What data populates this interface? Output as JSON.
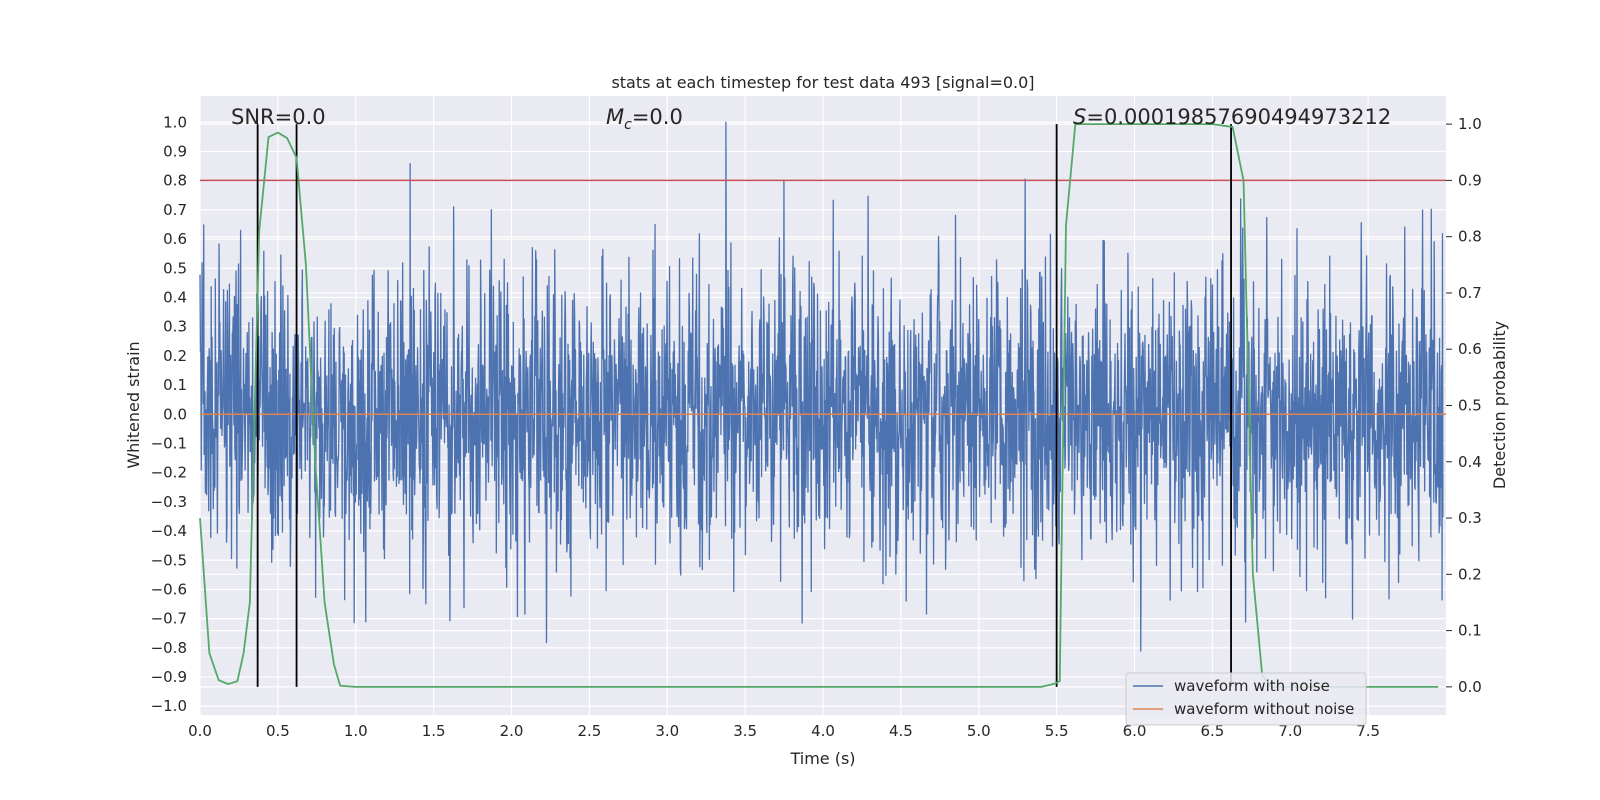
{
  "chart_data": {
    "type": "line",
    "title": "stats at each timestep for test data 493 [signal=0.0]",
    "xlabel": "Time (s)",
    "ylabel": "Whitened strain",
    "ylabel_right": "Detection probability",
    "xlim": [
      0.0,
      8.0
    ],
    "ylim": [
      -1.03,
      1.09
    ],
    "ylim_right": [
      -0.05,
      1.05
    ],
    "xticks": [
      "0.0",
      "0.5",
      "1.0",
      "1.5",
      "2.0",
      "2.5",
      "3.0",
      "3.5",
      "4.0",
      "4.5",
      "5.0",
      "5.5",
      "6.0",
      "6.5",
      "7.0",
      "7.5"
    ],
    "xtick_values": [
      0,
      0.5,
      1,
      1.5,
      2,
      2.5,
      3,
      3.5,
      4,
      4.5,
      5,
      5.5,
      6,
      6.5,
      7,
      7.5
    ],
    "yticks_left": [
      "1.0",
      "0.9",
      "0.8",
      "0.7",
      "0.6",
      "0.5",
      "0.4",
      "0.3",
      "0.2",
      "0.1",
      "0.0",
      "−0.1",
      "−0.2",
      "−0.3",
      "−0.4",
      "−0.5",
      "−0.6",
      "−0.7",
      "−0.8",
      "−0.9",
      "−1.0"
    ],
    "ytick_left_values": [
      1.0,
      0.9,
      0.8,
      0.7,
      0.6,
      0.5,
      0.4,
      0.3,
      0.2,
      0.1,
      0.0,
      -0.1,
      -0.2,
      -0.3,
      -0.4,
      -0.5,
      -0.6,
      -0.7,
      -0.8,
      -0.9,
      -1.0
    ],
    "yticks_right": [
      "1.0",
      "0.9",
      "0.8",
      "0.7",
      "0.6",
      "0.5",
      "0.4",
      "0.3",
      "0.2",
      "0.1",
      "0.0"
    ],
    "ytick_right_values": [
      1.0,
      0.9,
      0.8,
      0.7,
      0.6,
      0.5,
      0.4,
      0.3,
      0.2,
      0.1,
      0.0
    ],
    "annotations": {
      "snr": "SNR=0.0",
      "mc_symbol": "M",
      "mc_sub": "c",
      "mc_value": "=0.0",
      "s_symbol": "S",
      "s_value": "=0.00019857690494973212"
    },
    "series": [
      {
        "name": "waveform with noise",
        "color": "#4c72b0",
        "style": "noise",
        "envelope": 0.4,
        "max_abs": 1.0
      },
      {
        "name": "waveform without noise",
        "color": "#dd8452",
        "y": 0.0
      },
      {
        "name": "detection probability",
        "color": "#55a868",
        "axis": "right",
        "x": [
          0.0,
          0.06,
          0.12,
          0.18,
          0.24,
          0.28,
          0.32,
          0.38,
          0.44,
          0.5,
          0.56,
          0.62,
          0.68,
          0.74,
          0.8,
          0.86,
          0.9,
          1.0,
          2.0,
          3.0,
          4.0,
          5.0,
          5.4,
          5.48,
          5.52,
          5.56,
          5.62,
          6.0,
          6.5,
          6.63,
          6.7,
          6.76,
          6.82,
          6.88,
          7.0,
          7.95
        ],
        "y": [
          0.3,
          0.06,
          0.012,
          0.005,
          0.01,
          0.06,
          0.15,
          0.81,
          0.977,
          0.985,
          0.975,
          0.94,
          0.75,
          0.4,
          0.15,
          0.04,
          0.002,
          0.0,
          0.0,
          0.0,
          0.0,
          0.0,
          0.0,
          0.005,
          0.01,
          0.82,
          1.0,
          1.0,
          1.0,
          0.995,
          0.9,
          0.2,
          0.02,
          0.0,
          0.0,
          0.0
        ]
      },
      {
        "name": "threshold",
        "color": "#c44e52",
        "axis": "right",
        "y": 0.9
      }
    ],
    "event_lines": [
      0.37,
      0.62,
      5.5,
      6.62
    ],
    "legend": {
      "position": "lower-right",
      "entries": [
        {
          "label": "waveform with noise",
          "color": "#4c72b0"
        },
        {
          "label": "waveform without noise",
          "color": "#dd8452"
        }
      ]
    },
    "colors": {
      "plot_bg": "#eaeaf2",
      "grid": "#ffffff",
      "event_line": "#000000"
    }
  }
}
